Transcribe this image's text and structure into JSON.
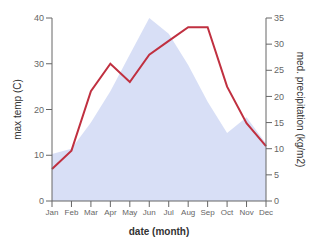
{
  "chart_data": {
    "type": "line",
    "categories": [
      "Jan",
      "Feb",
      "Mar",
      "Apr",
      "May",
      "Jun",
      "Jul",
      "Aug",
      "Sep",
      "Oct",
      "Nov",
      "Dec"
    ],
    "series": [
      {
        "type": "area",
        "color": "#b8c4ee",
        "axis": "y2",
        "values": [
          9,
          10,
          15,
          21,
          28,
          35,
          32,
          26,
          19,
          13,
          16,
          11
        ]
      },
      {
        "type": "line",
        "color": "#c03040",
        "values": [
          7,
          11,
          24,
          30,
          26,
          32,
          35,
          38,
          38,
          25,
          17,
          12
        ]
      }
    ],
    "xlabel": "date (month)",
    "ylabel": "max temp (C)",
    "y2label": "med. precipitation (kg/m2)",
    "ylim": [
      0,
      40
    ],
    "yticks": [
      0,
      10,
      20,
      30,
      40
    ],
    "y2lim": [
      0,
      35
    ],
    "y2ticks": [
      0,
      5,
      10,
      15,
      20,
      25,
      30,
      35
    ],
    "grid": false
  }
}
